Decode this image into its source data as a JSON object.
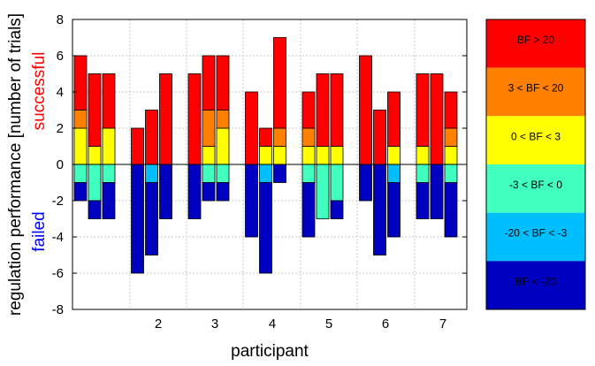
{
  "chart_data": {
    "type": "bar",
    "stacked": true,
    "xlabel": "participant",
    "ylabel": "regulation performance [number of trials]",
    "ylabel_positive": "successful",
    "ylabel_negative": "failed",
    "ylim": [
      -8,
      8
    ],
    "yticks": [
      "8",
      "6",
      "4",
      "2",
      "0",
      "-2",
      "-4",
      "-6",
      "-8"
    ],
    "xtick_labels": [
      "2",
      "3",
      "4",
      "5",
      "6",
      "7"
    ],
    "grid": true,
    "colorbar": [
      {
        "label": "BF > 20",
        "color": "#ff0000"
      },
      {
        "label": "3 < BF < 20",
        "color": "#ff8000"
      },
      {
        "label": "0 < BF < 3",
        "color": "#ffff00"
      },
      {
        "label": "-3 < BF < 0",
        "color": "#40ffbf"
      },
      {
        "label": "-20 < BF < -3",
        "color": "#00bfff"
      },
      {
        "label": "BF < -20",
        "color": "#0000c0"
      }
    ],
    "bars": [
      {
        "positive": {
          "0 < BF < 3": 2,
          "3 < BF < 20": 1,
          "BF > 20": 3
        },
        "negative": {
          "-3 < BF < 0": 1,
          "BF < -20": 1
        }
      },
      {
        "positive": {
          "0 < BF < 3": 1,
          "BF > 20": 4
        },
        "negative": {
          "-3 < BF < 0": 2,
          "BF < -20": 1
        }
      },
      {
        "positive": {
          "0 < BF < 3": 2,
          "BF > 20": 3
        },
        "negative": {
          "-3 < BF < 0": 1,
          "BF < -20": 2
        }
      },
      {
        "positive": {
          "BF > 20": 2
        },
        "negative": {
          "BF < -20": 6
        }
      },
      {
        "positive": {
          "BF > 20": 3
        },
        "negative": {
          "-20 < BF < -3": 1,
          "BF < -20": 4
        }
      },
      {
        "positive": {
          "BF > 20": 5
        },
        "negative": {
          "BF < -20": 3
        }
      },
      {
        "positive": {
          "BF > 20": 5
        },
        "negative": {
          "BF < -20": 3
        }
      },
      {
        "positive": {
          "0 < BF < 3": 1,
          "3 < BF < 20": 2,
          "BF > 20": 3
        },
        "negative": {
          "-3 < BF < 0": 1,
          "BF < -20": 1
        }
      },
      {
        "positive": {
          "0 < BF < 3": 2,
          "3 < BF < 20": 1,
          "BF > 20": 3
        },
        "negative": {
          "-3 < BF < 0": 1,
          "BF < -20": 1
        }
      },
      {
        "positive": {
          "BF > 20": 4
        },
        "negative": {
          "BF < -20": 4
        }
      },
      {
        "positive": {
          "0 < BF < 3": 1,
          "BF > 20": 1
        },
        "negative": {
          "-20 < BF < -3": 1,
          "BF < -20": 5
        }
      },
      {
        "positive": {
          "0 < BF < 3": 1,
          "3 < BF < 20": 1,
          "BF > 20": 5
        },
        "negative": {
          "BF < -20": 1
        }
      },
      {
        "positive": {
          "0 < BF < 3": 1,
          "3 < BF < 20": 1,
          "BF > 20": 2
        },
        "negative": {
          "-3 < BF < 0": 1,
          "BF < -20": 3
        }
      },
      {
        "positive": {
          "0 < BF < 3": 1,
          "BF > 20": 4
        },
        "negative": {
          "-3 < BF < 0": 3
        }
      },
      {
        "positive": {
          "0 < BF < 3": 1,
          "BF > 20": 4
        },
        "negative": {
          "-3 < BF < 0": 2,
          "BF < -20": 1
        }
      },
      {
        "positive": {
          "BF > 20": 6
        },
        "negative": {
          "BF < -20": 2
        }
      },
      {
        "positive": {
          "BF > 20": 3
        },
        "negative": {
          "BF < -20": 5
        }
      },
      {
        "positive": {
          "0 < BF < 3": 1,
          "BF > 20": 3
        },
        "negative": {
          "-20 < BF < -3": 1,
          "BF < -20": 3
        }
      },
      {
        "positive": {
          "0 < BF < 3": 1,
          "BF > 20": 4
        },
        "negative": {
          "-3 < BF < 0": 1,
          "BF < -20": 2
        }
      },
      {
        "positive": {
          "BF > 20": 5
        },
        "negative": {
          "BF < -20": 3
        }
      },
      {
        "positive": {
          "0 < BF < 3": 1,
          "3 < BF < 20": 1,
          "BF > 20": 2
        },
        "negative": {
          "-3 < BF < 0": 1,
          "BF < -20": 3
        }
      }
    ]
  }
}
